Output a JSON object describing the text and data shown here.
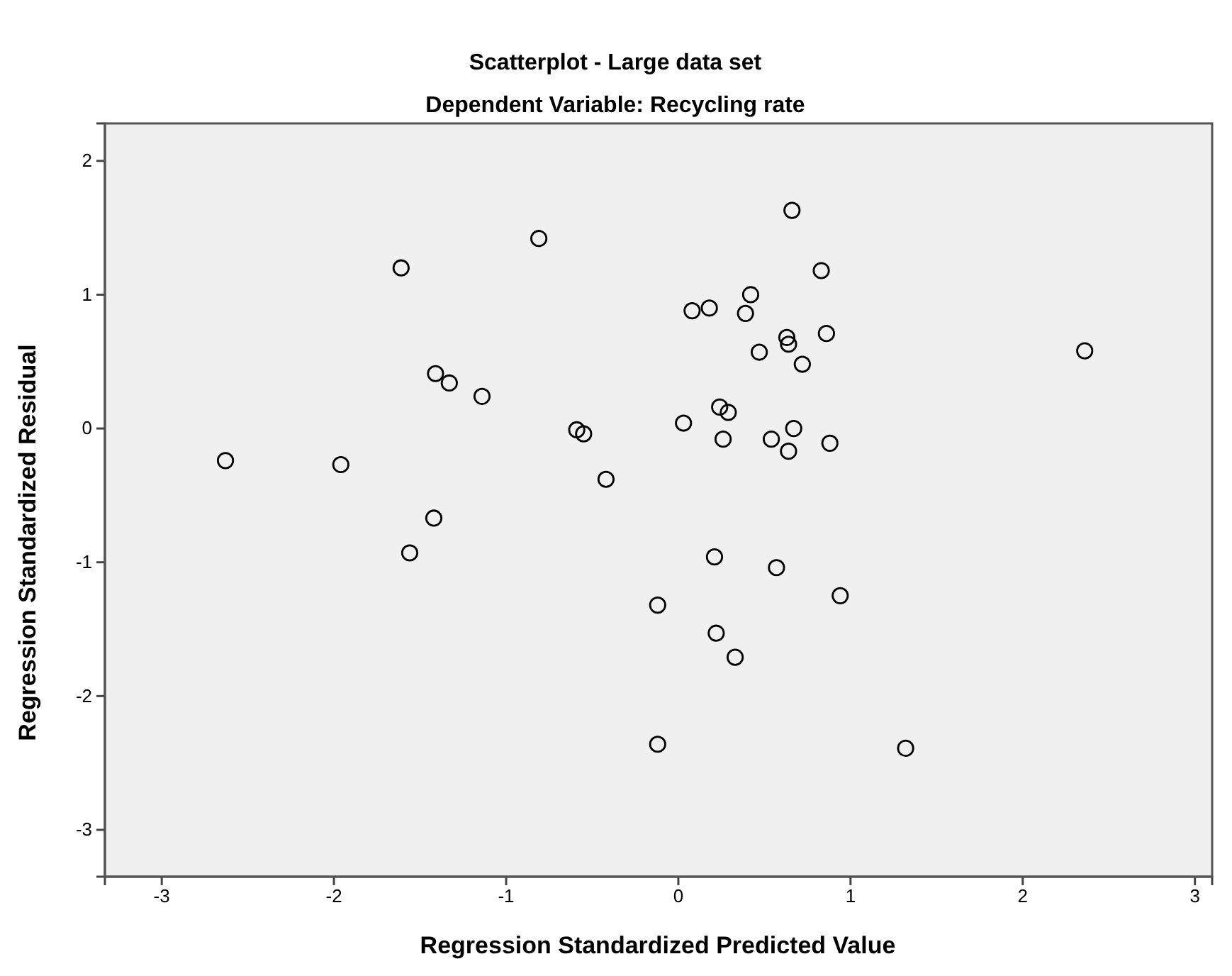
{
  "chart_data": {
    "type": "scatter",
    "title": "Scatterplot - Large data set",
    "subtitle": "Dependent Variable: Recycling rate",
    "xlabel": "Regression Standardized Predicted Value",
    "ylabel": "Regression Standardized Residual",
    "xlim": [
      -3.33,
      3.1
    ],
    "ylim": [
      -3.35,
      2.28
    ],
    "xticks": [
      -3,
      -2,
      -1,
      0,
      1,
      2,
      3
    ],
    "yticks": [
      -3,
      -2,
      -1,
      0,
      1,
      2
    ],
    "grid": false,
    "marker": "circle",
    "series": [
      {
        "color": "#000000",
        "x": [
          -0.81,
          -1.61,
          -1.41,
          -1.33,
          -1.14,
          -0.59,
          -0.55,
          -2.63,
          -1.96,
          -0.42,
          -1.42,
          -1.56,
          -0.12,
          -0.12,
          0.66,
          0.83,
          0.42,
          0.08,
          0.18,
          0.39,
          0.63,
          0.64,
          0.86,
          0.47,
          0.72,
          2.36,
          0.24,
          0.29,
          0.03,
          0.26,
          0.54,
          0.67,
          0.64,
          0.88,
          0.21,
          0.57,
          0.94,
          0.22,
          0.33,
          1.32
        ],
        "values": [
          1.42,
          1.2,
          0.41,
          0.34,
          0.24,
          -0.01,
          -0.04,
          -0.24,
          -0.27,
          -0.38,
          -0.67,
          -0.93,
          -1.32,
          -2.36,
          1.63,
          1.18,
          1.0,
          0.88,
          0.9,
          0.86,
          0.68,
          0.63,
          0.71,
          0.57,
          0.48,
          0.58,
          0.16,
          0.12,
          0.04,
          -0.08,
          -0.08,
          0.0,
          -0.17,
          -0.11,
          -0.96,
          -1.04,
          -1.25,
          -1.53,
          -1.71,
          -2.39
        ]
      }
    ]
  }
}
